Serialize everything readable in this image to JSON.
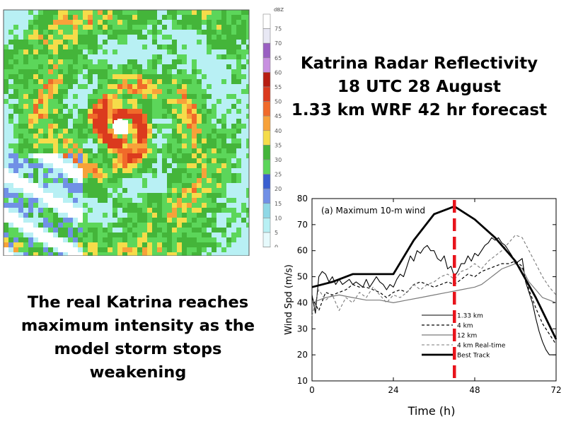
{
  "slide": {
    "title_lines": [
      "Katrina Radar Reflectivity",
      "18 UTC 28 August",
      "1.33 km WRF 42 hr forecast"
    ],
    "caption_lines": [
      "The real Katrina reaches",
      "maximum intensity as the",
      "model storm stops",
      "weakening"
    ]
  },
  "radar": {
    "colorbar_unit": "dBZ",
    "colorbar_ticks": [
      "75",
      "70",
      "65",
      "60",
      "55",
      "50",
      "45",
      "40",
      "35",
      "30",
      "25",
      "20",
      "15",
      "10",
      "5",
      "0"
    ],
    "colorbar_colors": [
      "#ffffff",
      "#e8e8f4",
      "#9a5fc2",
      "#c890e0",
      "#b71d12",
      "#db3a1e",
      "#f06a2a",
      "#f7a23a",
      "#f5dc4a",
      "#44b53a",
      "#5cd65a",
      "#3a5fd0",
      "#7190e6",
      "#8fd8e6",
      "#b8f0f4",
      "#e6fafc",
      "#ffffff"
    ]
  },
  "chart_data": {
    "type": "line",
    "title": "(a) Maximum 10-m wind",
    "xlabel": "Time (h)",
    "ylabel": "Wind Spd (m/s)",
    "xlim": [
      0,
      72
    ],
    "ylim": [
      10,
      80
    ],
    "xticks": [
      0,
      24,
      48,
      72
    ],
    "yticks": [
      10,
      20,
      30,
      40,
      50,
      60,
      70,
      80
    ],
    "marker_line": {
      "x": 42,
      "color": "#e8141c"
    },
    "series": [
      {
        "name": "1.33 km",
        "style": "solid-thin",
        "color": "#000000",
        "x": [
          0,
          1,
          2,
          3,
          4,
          5,
          6,
          7,
          8,
          9,
          10,
          11,
          12,
          13,
          14,
          15,
          16,
          17,
          18,
          19,
          20,
          21,
          22,
          23,
          24,
          25,
          26,
          27,
          28,
          29,
          30,
          31,
          32,
          33,
          34,
          35,
          36,
          37,
          38,
          39,
          40,
          41,
          42,
          43,
          44,
          45,
          46,
          47,
          48,
          49,
          50,
          51,
          52,
          53,
          54,
          55,
          56,
          57,
          58,
          59,
          60,
          61,
          62,
          63,
          64,
          65,
          66,
          67,
          68,
          69,
          70,
          71,
          72
        ],
        "y": [
          43,
          36,
          50,
          52,
          51,
          48,
          50,
          47,
          49,
          47,
          48,
          49,
          47,
          48,
          47,
          46,
          49,
          46,
          48,
          50,
          48,
          47,
          45,
          47,
          46,
          49,
          51,
          50,
          54,
          58,
          56,
          60,
          59,
          61,
          62,
          60,
          60,
          57,
          56,
          58,
          53,
          54,
          50,
          52,
          55,
          55,
          58,
          56,
          59,
          58,
          60,
          62,
          63,
          65,
          64,
          65,
          63,
          62,
          60,
          58,
          55,
          56,
          57,
          48,
          44,
          40,
          34,
          29,
          25,
          22,
          20,
          20,
          20
        ]
      },
      {
        "name": "4 km",
        "style": "dashed",
        "color": "#000000",
        "x": [
          0,
          2,
          4,
          6,
          8,
          10,
          12,
          14,
          16,
          18,
          20,
          22,
          24,
          26,
          28,
          30,
          32,
          34,
          36,
          38,
          40,
          42,
          44,
          46,
          48,
          50,
          52,
          54,
          56,
          58,
          60,
          62,
          64,
          66,
          68,
          70,
          72
        ],
        "y": [
          42,
          37,
          44,
          43,
          44,
          45,
          47,
          46,
          46,
          45,
          44,
          42,
          44,
          45,
          44,
          47,
          48,
          47,
          46,
          47,
          48,
          47,
          49,
          51,
          50,
          52,
          53,
          54,
          55,
          55,
          56,
          54,
          45,
          38,
          32,
          28,
          24
        ]
      },
      {
        "name": "12 km",
        "style": "solid-gray",
        "color": "#7a7a7a",
        "x": [
          0,
          4,
          8,
          12,
          16,
          20,
          24,
          28,
          32,
          36,
          40,
          44,
          48,
          50,
          52,
          54,
          56,
          58,
          60,
          62,
          64,
          66,
          68,
          70,
          72
        ],
        "y": [
          40,
          42,
          43,
          42,
          41,
          41,
          40,
          41,
          42,
          43,
          44,
          45,
          46,
          47,
          49,
          51,
          53,
          54,
          55,
          53,
          48,
          45,
          42,
          41,
          40
        ]
      },
      {
        "name": "4 km Real-time",
        "style": "dashed-gray",
        "color": "#7a7a7a",
        "x": [
          0,
          2,
          4,
          6,
          8,
          10,
          12,
          14,
          16,
          18,
          20,
          22,
          24,
          26,
          28,
          30,
          32,
          34,
          36,
          38,
          40,
          42,
          44,
          46,
          48,
          50,
          52,
          54,
          56,
          58,
          60,
          62,
          64,
          66,
          68,
          70,
          72
        ],
        "y": [
          35,
          45,
          41,
          43,
          37,
          42,
          40,
          44,
          42,
          46,
          43,
          40,
          43,
          42,
          44,
          47,
          45,
          47,
          48,
          50,
          51,
          49,
          52,
          53,
          55,
          53,
          56,
          58,
          60,
          63,
          66,
          65,
          60,
          55,
          50,
          46,
          43
        ]
      },
      {
        "name": "Best Track",
        "style": "solid-thick",
        "color": "#000000",
        "x": [
          0,
          6,
          12,
          18,
          24,
          30,
          36,
          42,
          48,
          54,
          60,
          66,
          72
        ],
        "y": [
          46,
          48,
          51,
          51,
          51,
          64,
          74,
          77,
          72,
          65,
          56,
          42,
          26
        ]
      }
    ]
  }
}
